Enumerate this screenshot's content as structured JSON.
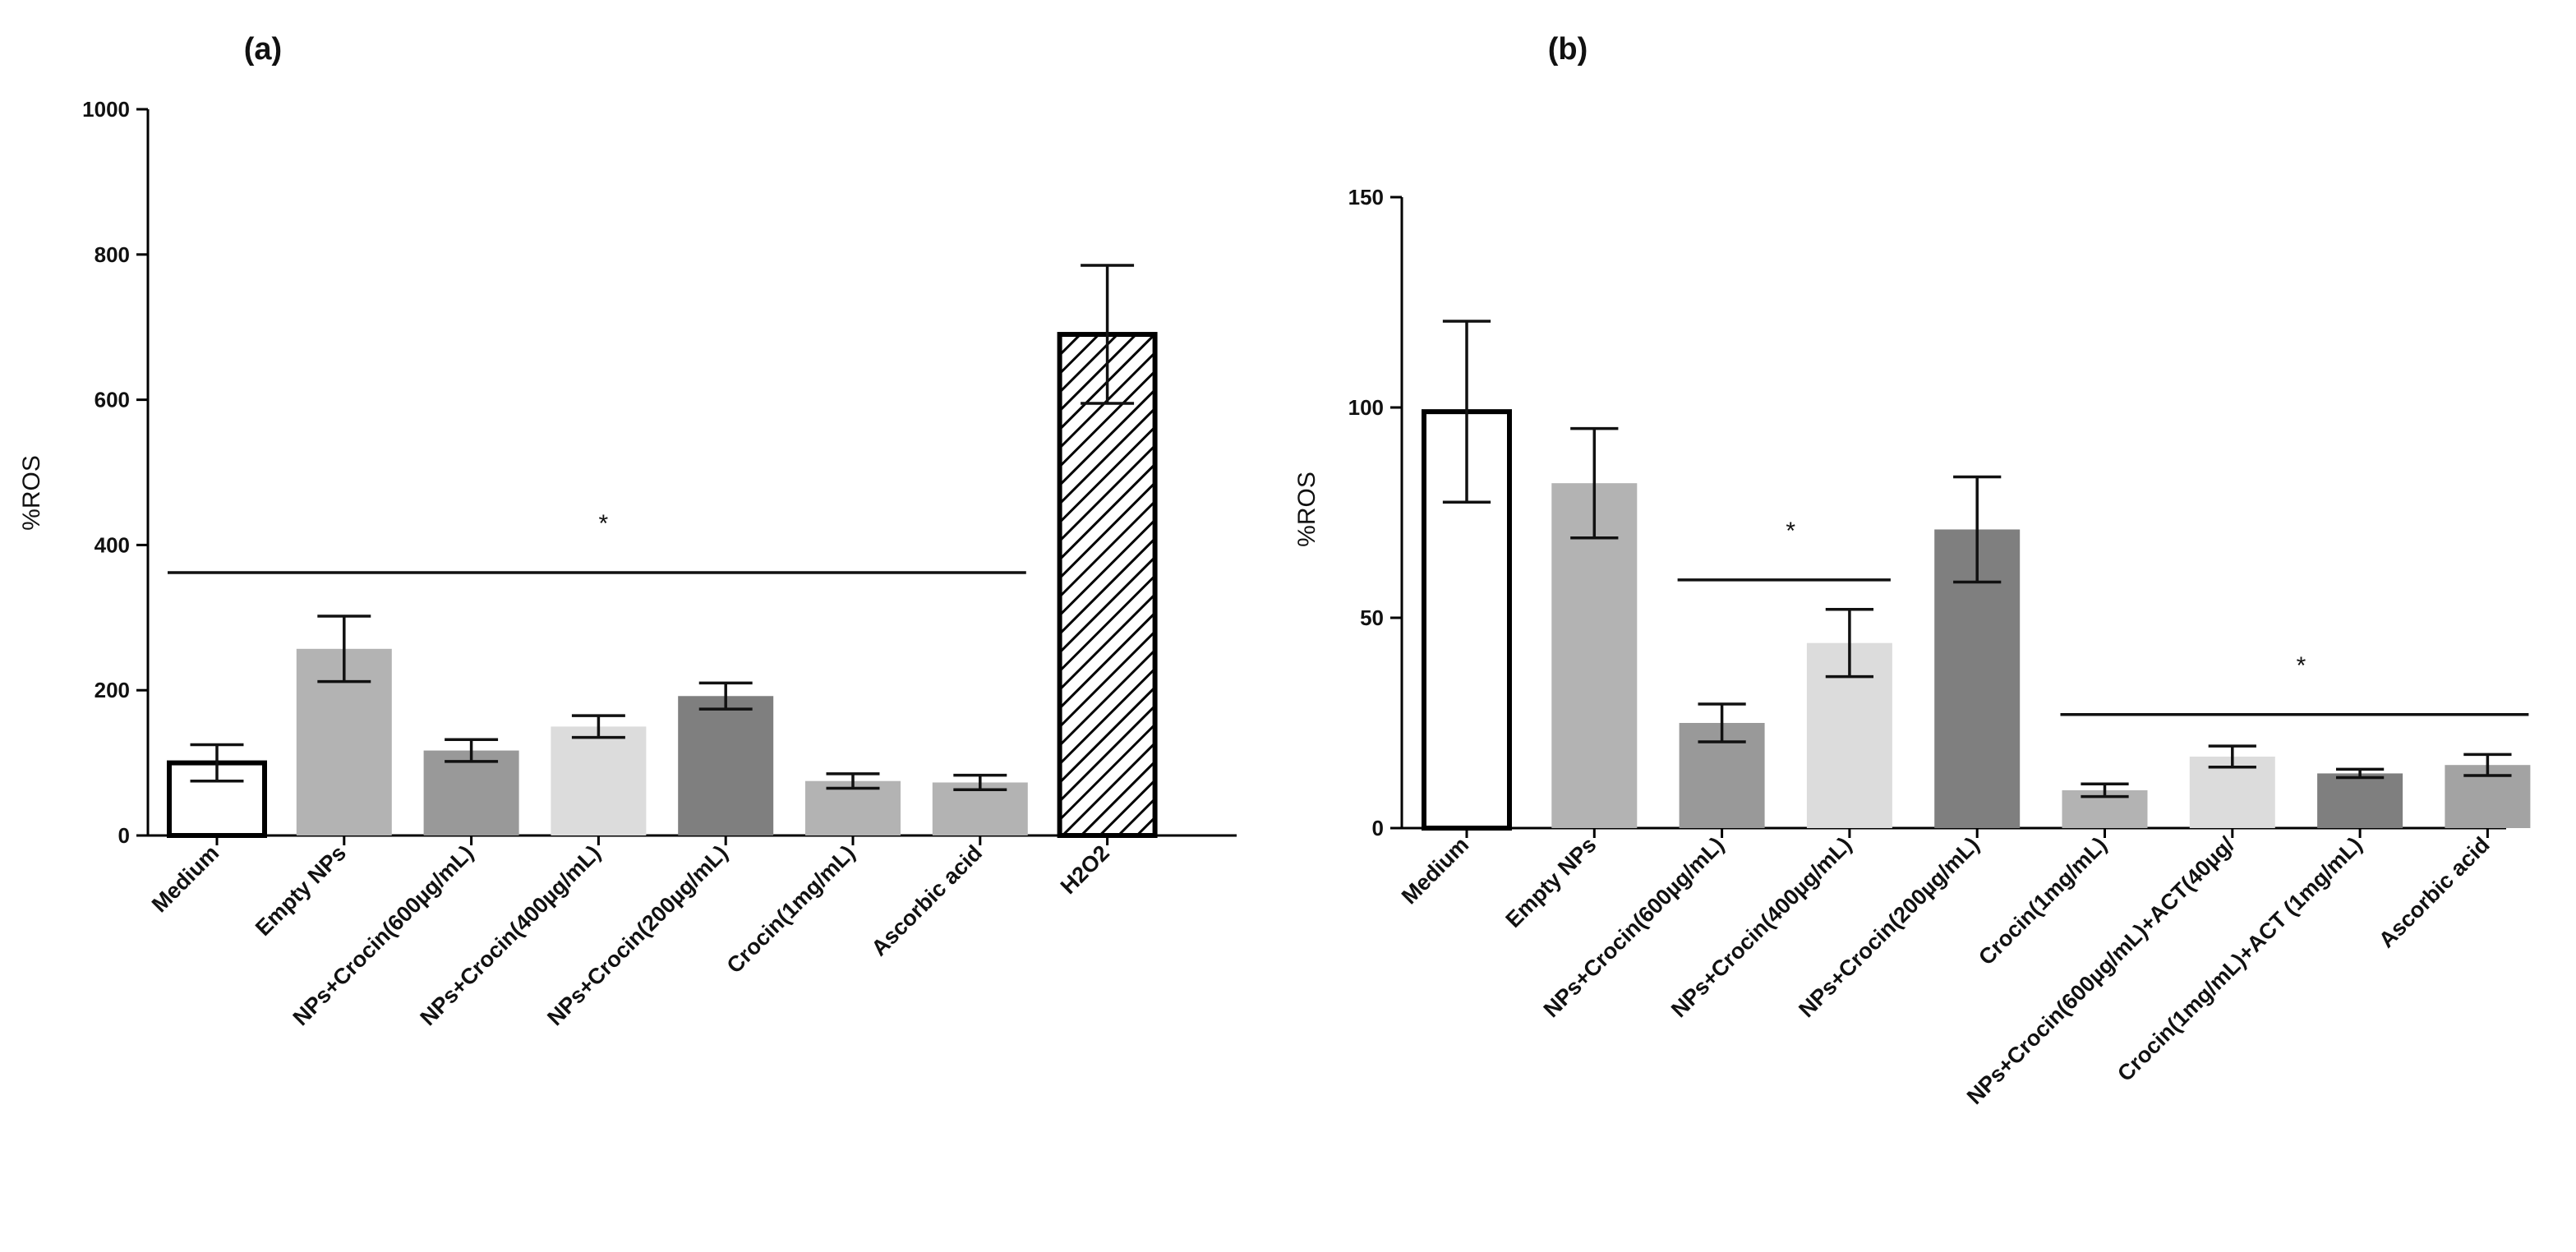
{
  "chart_data": [
    {
      "type": "bar",
      "panel_label": "(a)",
      "ylabel": "%ROS",
      "ylim": [
        0,
        1000
      ],
      "yticks": [
        0,
        200,
        400,
        600,
        800,
        1000
      ],
      "categories": [
        "Medium",
        "Empty NPs",
        "NPs+Crocin(600µg/mL)",
        "NPs+Crocin(400µg/mL)",
        "NPs+Crocin(200µg/mL)",
        "Crocin(1mg/mL)",
        "Ascorbic acid",
        "H2O2"
      ],
      "values": [
        100,
        257,
        117,
        150,
        192,
        75,
        73,
        690
      ],
      "errors": [
        25,
        45,
        15,
        15,
        18,
        10,
        10,
        95
      ],
      "colors": [
        "#ffffff",
        "#b3b3b3",
        "#999999",
        "#dcdcdc",
        "#7f7f7f",
        "#b3b3b3",
        "#b3b3b3",
        "hatch"
      ],
      "significance": [
        {
          "from": 0,
          "to": 6,
          "y": 362,
          "label": "*"
        }
      ]
    },
    {
      "type": "bar",
      "panel_label": "(b)",
      "ylabel": "%ROS",
      "ylim": [
        0,
        150
      ],
      "yticks": [
        0,
        50,
        100,
        150
      ],
      "categories": [
        "Medium",
        "Empty NPs",
        "NPs+Crocin(600µg/mL)",
        "NPs+Crocin(400µg/mL)",
        "NPs+Crocin(200µg/mL)",
        "Crocin(1mg/mL)",
        "NPs+Crocin(600µg/mL)+ACT(40µg/",
        "Crocin(1mg/mL)+ACT (1mg/mL)",
        "Ascorbic acid"
      ],
      "values": [
        99,
        82,
        25,
        44,
        71,
        9,
        17,
        13,
        15
      ],
      "errors": [
        21.5,
        13,
        4.5,
        8,
        12.5,
        1.5,
        2.5,
        1,
        2.5
      ],
      "colors": [
        "#ffffff",
        "#b3b3b3",
        "#999999",
        "#dcdcdc",
        "#7f7f7f",
        "#b3b3b3",
        "#dcdcdc",
        "#7f7f7f",
        "#a3a3a3"
      ],
      "significance": [
        {
          "from": 2,
          "to": 3,
          "y": 59,
          "label": "*"
        },
        {
          "from": 5,
          "to": 8,
          "y": 27,
          "label": "*"
        }
      ]
    }
  ]
}
